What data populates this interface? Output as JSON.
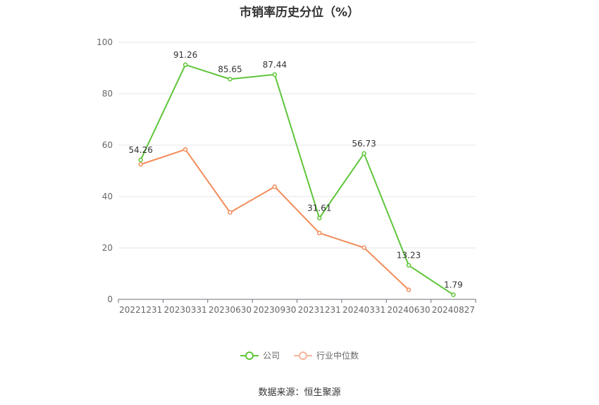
{
  "chart_data": {
    "type": "line",
    "title": "市销率历史分位（%）",
    "categories": [
      "20221231",
      "20230331",
      "20230630",
      "20230930",
      "20231231",
      "20240331",
      "20240630",
      "20240827"
    ],
    "ylim": [
      0,
      100
    ],
    "yticks": [
      0,
      20,
      40,
      60,
      80,
      100
    ],
    "grid": true,
    "legend_position": "bottom",
    "series": [
      {
        "name": "公司",
        "color": "#5fc53a",
        "values": [
          54.26,
          91.26,
          85.65,
          87.44,
          31.61,
          56.73,
          13.23,
          1.79
        ],
        "labels": [
          "54.26",
          "91.26",
          "85.65",
          "87.44",
          "31.61",
          "56.73",
          "13.23",
          "1.79"
        ]
      },
      {
        "name": "行业中位数",
        "color": "#f28c5a",
        "values": [
          52.5,
          58.3,
          33.8,
          43.8,
          25.8,
          20.1,
          3.7,
          null
        ]
      }
    ]
  },
  "source": "数据来源：恒生聚源"
}
